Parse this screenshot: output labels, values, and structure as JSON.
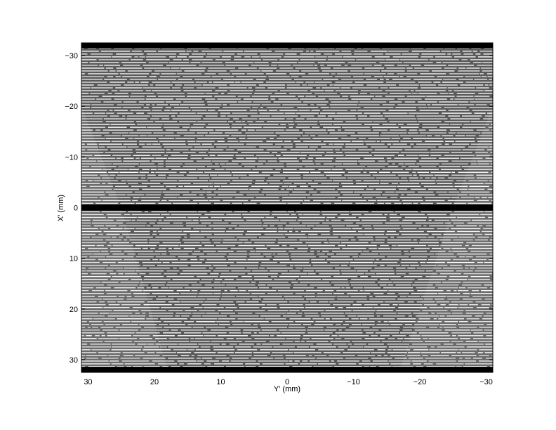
{
  "chart_data": {
    "type": "heatmap",
    "colormap": "gray",
    "title": "",
    "xlabel": "Y' (mm)",
    "ylabel": "X' (mm)",
    "xlim": [
      31,
      -31
    ],
    "ylim": [
      -32.5,
      32.5
    ],
    "x_reversed": true,
    "y_reversed": true,
    "xticks": [
      30,
      20,
      10,
      0,
      -10,
      -20,
      -30
    ],
    "xtick_labels": [
      "30",
      "20",
      "10",
      "0",
      "−10",
      "−20",
      "−30"
    ],
    "yticks": [
      -30,
      -20,
      -10,
      0,
      10,
      20,
      30
    ],
    "ytick_labels": [
      "−30",
      "−20",
      "−10",
      "0",
      "10",
      "20",
      "30"
    ],
    "grid": false,
    "description_bands": {
      "black_rows_at": [
        -32,
        0,
        32
      ],
      "stripe_spacing_mm": 1
    },
    "colors": {
      "background": "#5a5a5a",
      "stripe": "#e8e8e8",
      "band": "#000000",
      "wedge": "#767676"
    }
  }
}
